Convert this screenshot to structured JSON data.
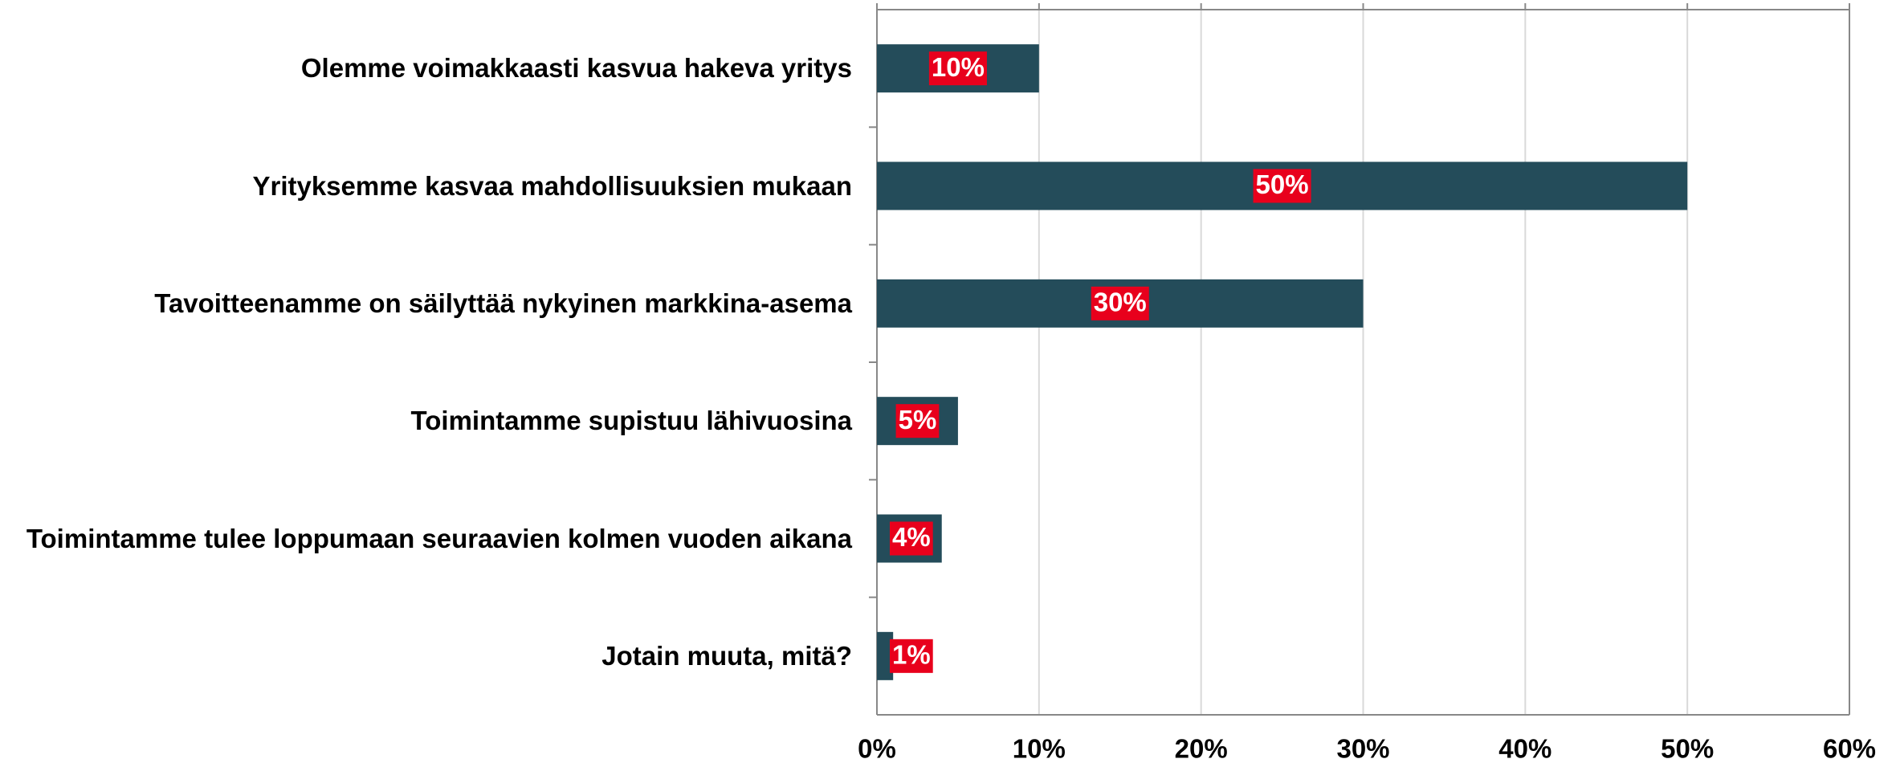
{
  "chart_data": {
    "type": "bar",
    "orientation": "horizontal",
    "categories": [
      "Olemme voimakkaasti kasvua hakeva yritys",
      "Yrityksemme kasvaa mahdollisuuksien mukaan",
      "Tavoitteenamme on säilyttää nykyinen markkina-asema",
      "Toimintamme supistuu lähivuosina",
      "Toimintamme tulee loppumaan seuraavien kolmen vuoden aikana",
      "Jotain muuta, mitä?"
    ],
    "values": [
      10,
      50,
      30,
      5,
      4,
      1
    ],
    "value_labels": [
      "10%",
      "50%",
      "30%",
      "5%",
      "4%",
      "1%"
    ],
    "color": "#244c5a",
    "label_color": "#e8001c",
    "xlim": [
      0,
      60
    ],
    "xticks": [
      {
        "value": 0,
        "label": "0%"
      },
      {
        "value": 10,
        "label": "10%"
      },
      {
        "value": 20,
        "label": "20%"
      },
      {
        "value": 30,
        "label": "30%"
      },
      {
        "value": 40,
        "label": "40%"
      },
      {
        "value": 50,
        "label": "50%"
      },
      {
        "value": 60,
        "label": "60%"
      }
    ],
    "grid": true
  }
}
